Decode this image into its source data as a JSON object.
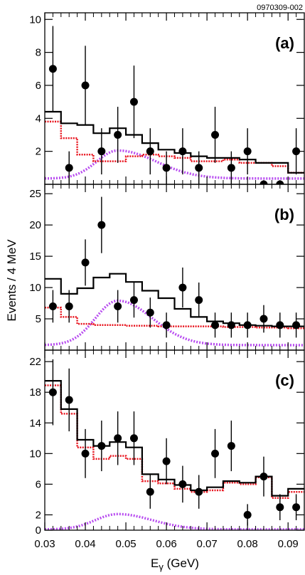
{
  "figure_id": "0970309-002",
  "colors": {
    "data": "#000000",
    "total": "#000000",
    "background": "#e8141e",
    "signal": "#b84cf0"
  },
  "chart_data": {
    "type": "scatter",
    "xlabel_main": "E",
    "xlabel_sub": "γ",
    "xlabel_unit": " (GeV)",
    "ylabel": "Events / 4 MeV",
    "xlim": [
      0.03,
      0.094
    ],
    "x_ticks": [
      0.03,
      0.04,
      0.05,
      0.06,
      0.07,
      0.08,
      0.09
    ],
    "x_tick_labels": [
      "0.03",
      "0.04",
      "0.05",
      "0.06",
      "0.07",
      "0.08",
      "0.09"
    ],
    "bin_edges": [
      0.03,
      0.034,
      0.038,
      0.042,
      0.046,
      0.05,
      0.054,
      0.058,
      0.062,
      0.066,
      0.07,
      0.074,
      0.078,
      0.082,
      0.086,
      0.09,
      0.094
    ],
    "panels": [
      {
        "label": "(a)",
        "ylim": [
          0,
          10.4
        ],
        "y_ticks": [
          2,
          4,
          6,
          8,
          10
        ],
        "y_tick_labels": [
          "2",
          "4",
          "6",
          "8",
          "10"
        ],
        "points": [
          {
            "x": 0.032,
            "y": 7,
            "err": [
              2.6,
              2.6
            ]
          },
          {
            "x": 0.036,
            "y": 1,
            "err": [
              1,
              1
            ]
          },
          {
            "x": 0.04,
            "y": 6,
            "err": [
              2.4,
              2.4
            ]
          },
          {
            "x": 0.044,
            "y": 2,
            "err": [
              1.4,
              1.4
            ]
          },
          {
            "x": 0.048,
            "y": 3,
            "err": [
              1.7,
              1.7
            ]
          },
          {
            "x": 0.052,
            "y": 5,
            "err": [
              2.2,
              2.2
            ]
          },
          {
            "x": 0.056,
            "y": 2,
            "err": [
              1.4,
              1.4
            ]
          },
          {
            "x": 0.06,
            "y": 1,
            "err": [
              1,
              1
            ]
          },
          {
            "x": 0.064,
            "y": 2,
            "err": [
              1.4,
              1.4
            ]
          },
          {
            "x": 0.068,
            "y": 1,
            "err": [
              1,
              1
            ]
          },
          {
            "x": 0.072,
            "y": 3,
            "err": [
              1.7,
              1.7
            ]
          },
          {
            "x": 0.076,
            "y": 1,
            "err": [
              1,
              1
            ]
          },
          {
            "x": 0.08,
            "y": 2,
            "err": [
              1.4,
              1.4
            ]
          },
          {
            "x": 0.084,
            "y": 0,
            "err": [
              0,
              0
            ]
          },
          {
            "x": 0.088,
            "y": 0,
            "err": [
              0,
              0
            ]
          },
          {
            "x": 0.092,
            "y": 2,
            "err": [
              1.4,
              1.4
            ]
          }
        ],
        "total_fit": [
          4.4,
          3.7,
          3.6,
          3.1,
          3.4,
          3.0,
          2.5,
          2.1,
          1.9,
          1.7,
          1.6,
          1.6,
          1.5,
          1.3,
          1.3,
          0.7
        ],
        "background": [
          3.8,
          2.8,
          1.8,
          1.4,
          1.4,
          1.7,
          1.8,
          1.7,
          1.6,
          1.4,
          1.4,
          1.5,
          1.3,
          1.3,
          1.1,
          0.7
        ],
        "signal": {
          "amplitude": 2.05,
          "mean": 0.048,
          "left_sigma": 0.0052,
          "right_sigma": 0.0095,
          "offset": 0.35
        }
      },
      {
        "label": "(b)",
        "ylim": [
          0,
          26.5
        ],
        "y_ticks": [
          5,
          10,
          15,
          20,
          25
        ],
        "y_tick_labels": [
          "5",
          "10",
          "15",
          "20",
          "25"
        ],
        "points": [
          {
            "x": 0.032,
            "y": 7,
            "err": [
              2.6,
              2.6
            ]
          },
          {
            "x": 0.036,
            "y": 7,
            "err": [
              2.6,
              2.6
            ]
          },
          {
            "x": 0.04,
            "y": 14,
            "err": [
              3.7,
              3.7
            ]
          },
          {
            "x": 0.044,
            "y": 20,
            "err": [
              4.5,
              4.5
            ]
          },
          {
            "x": 0.048,
            "y": 7,
            "err": [
              2.6,
              2.6
            ]
          },
          {
            "x": 0.052,
            "y": 8,
            "err": [
              2.8,
              2.8
            ]
          },
          {
            "x": 0.056,
            "y": 6,
            "err": [
              2.4,
              2.4
            ]
          },
          {
            "x": 0.06,
            "y": 4,
            "err": [
              2,
              2
            ]
          },
          {
            "x": 0.064,
            "y": 10,
            "err": [
              3.2,
              3.2
            ]
          },
          {
            "x": 0.068,
            "y": 8,
            "err": [
              2.8,
              2.8
            ]
          },
          {
            "x": 0.072,
            "y": 4,
            "err": [
              2,
              2
            ]
          },
          {
            "x": 0.076,
            "y": 4,
            "err": [
              2,
              2
            ]
          },
          {
            "x": 0.08,
            "y": 4,
            "err": [
              2,
              2
            ]
          },
          {
            "x": 0.084,
            "y": 5,
            "err": [
              2.2,
              2.2
            ]
          },
          {
            "x": 0.088,
            "y": 4,
            "err": [
              2,
              2
            ]
          },
          {
            "x": 0.092,
            "y": 4,
            "err": [
              2,
              2
            ]
          }
        ],
        "total_fit": [
          11.4,
          9.0,
          9.9,
          11.6,
          12.2,
          10.9,
          9.5,
          8.3,
          6.6,
          5.3,
          4.6,
          4.3,
          4.0,
          3.9,
          3.8,
          3.8
        ],
        "background": [
          6.8,
          5.3,
          4.2,
          4.0,
          4.0,
          3.9,
          3.9,
          3.8,
          3.8,
          3.8,
          3.8,
          3.7,
          3.7,
          3.6,
          3.6,
          3.5
        ],
        "signal": {
          "amplitude": 7.9,
          "mean": 0.048,
          "left_sigma": 0.0055,
          "right_sigma": 0.0085,
          "offset": 0.8
        }
      },
      {
        "label": "(c)",
        "ylim": [
          0,
          23.5
        ],
        "y_ticks": [
          0,
          2,
          6,
          10,
          14,
          18,
          22
        ],
        "y_tick_labels": [
          "0",
          "2",
          "6",
          "10",
          "14",
          "18",
          "22"
        ],
        "points": [
          {
            "x": 0.032,
            "y": 18,
            "err": [
              4.3,
              4.3
            ]
          },
          {
            "x": 0.036,
            "y": 17,
            "err": [
              4.1,
              4.1
            ]
          },
          {
            "x": 0.04,
            "y": 10,
            "err": [
              3.2,
              3.2
            ]
          },
          {
            "x": 0.044,
            "y": 11,
            "err": [
              3.3,
              3.3
            ]
          },
          {
            "x": 0.048,
            "y": 12,
            "err": [
              3.5,
              3.5
            ]
          },
          {
            "x": 0.052,
            "y": 12,
            "err": [
              3.5,
              3.5
            ]
          },
          {
            "x": 0.056,
            "y": 5,
            "err": [
              2.2,
              2.2
            ]
          },
          {
            "x": 0.06,
            "y": 9,
            "err": [
              3,
              3
            ]
          },
          {
            "x": 0.064,
            "y": 6,
            "err": [
              2.4,
              2.4
            ]
          },
          {
            "x": 0.068,
            "y": 5,
            "err": [
              2.2,
              2.2
            ]
          },
          {
            "x": 0.072,
            "y": 10,
            "err": [
              3.2,
              3.2
            ]
          },
          {
            "x": 0.076,
            "y": 11,
            "err": [
              3.3,
              3.3
            ]
          },
          {
            "x": 0.08,
            "y": 2,
            "err": [
              1.4,
              1.4
            ]
          },
          {
            "x": 0.084,
            "y": 7,
            "err": [
              2.6,
              2.6
            ]
          },
          {
            "x": 0.088,
            "y": 3,
            "err": [
              1.7,
              1.7
            ]
          },
          {
            "x": 0.092,
            "y": 3,
            "err": [
              1.7,
              1.7
            ]
          }
        ],
        "total_fit": [
          19.5,
          15.8,
          11.8,
          11.0,
          11.5,
          10.8,
          7.3,
          6.6,
          5.9,
          5.2,
          5.6,
          6.4,
          6.2,
          7.0,
          4.5,
          5.4
        ],
        "background": [
          18.9,
          15.2,
          10.8,
          9.3,
          9.7,
          9.3,
          6.4,
          6.1,
          5.4,
          5.0,
          5.2,
          6.2,
          6.0,
          6.9,
          4.2,
          5.0
        ],
        "signal": {
          "amplitude": 2.1,
          "mean": 0.048,
          "left_sigma": 0.0055,
          "right_sigma": 0.0085,
          "offset": 0.1
        }
      }
    ]
  }
}
